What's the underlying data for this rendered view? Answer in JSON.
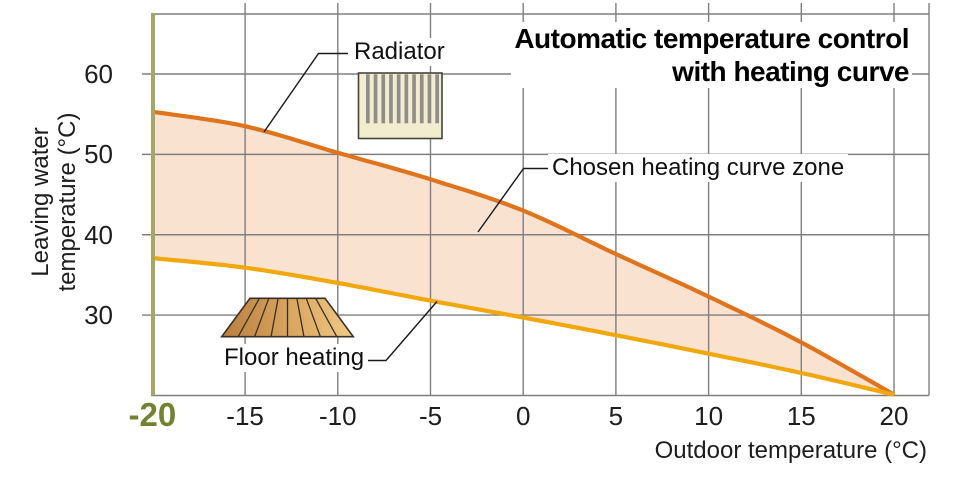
{
  "title": {
    "line1": "Automatic temperature control",
    "line2": "with heating curve"
  },
  "chart_data": {
    "type": "area",
    "title": "Automatic temperature control with heating curve",
    "xlabel": "Outdoor temperature (°C)",
    "ylabel": "Leaving water temperature (°C)",
    "ylabel_lines": [
      "Leaving water",
      "temperature (°C)"
    ],
    "xlim": [
      -20,
      21.9
    ],
    "ylim": [
      20,
      67.5
    ],
    "x_ticks": [
      -20,
      -15,
      -10,
      -5,
      0,
      5,
      10,
      15,
      20
    ],
    "y_ticks": [
      60,
      50,
      40,
      30
    ],
    "grid": true,
    "x_highlight": {
      "value": -20,
      "color": "#71832F"
    },
    "series": [
      {
        "name": "Radiator",
        "color": "#E0741C",
        "points": [
          [
            -20,
            55.3
          ],
          [
            -15,
            53.5
          ],
          [
            -10,
            50.2
          ],
          [
            -5,
            46.9
          ],
          [
            0,
            43.0
          ],
          [
            5,
            37.6
          ],
          [
            10,
            32.3
          ],
          [
            15,
            26.6
          ],
          [
            20,
            20.1
          ]
        ]
      },
      {
        "name": "Floor heating",
        "color": "#F2A70C",
        "points": [
          [
            -20,
            37.1
          ],
          [
            -15,
            35.9
          ],
          [
            -10,
            34.0
          ],
          [
            -5,
            31.8
          ],
          [
            0,
            29.7
          ],
          [
            5,
            27.5
          ],
          [
            10,
            25.2
          ],
          [
            15,
            22.8
          ],
          [
            20,
            20.1
          ]
        ]
      }
    ],
    "zone": {
      "label": "Chosen heating curve zone",
      "fill": "#FAE2D1"
    },
    "axis_colors": {
      "y_axis_line": "#A3A964",
      "grid": "#7F7F7F",
      "tick_text": "#1d1d1d"
    }
  }
}
